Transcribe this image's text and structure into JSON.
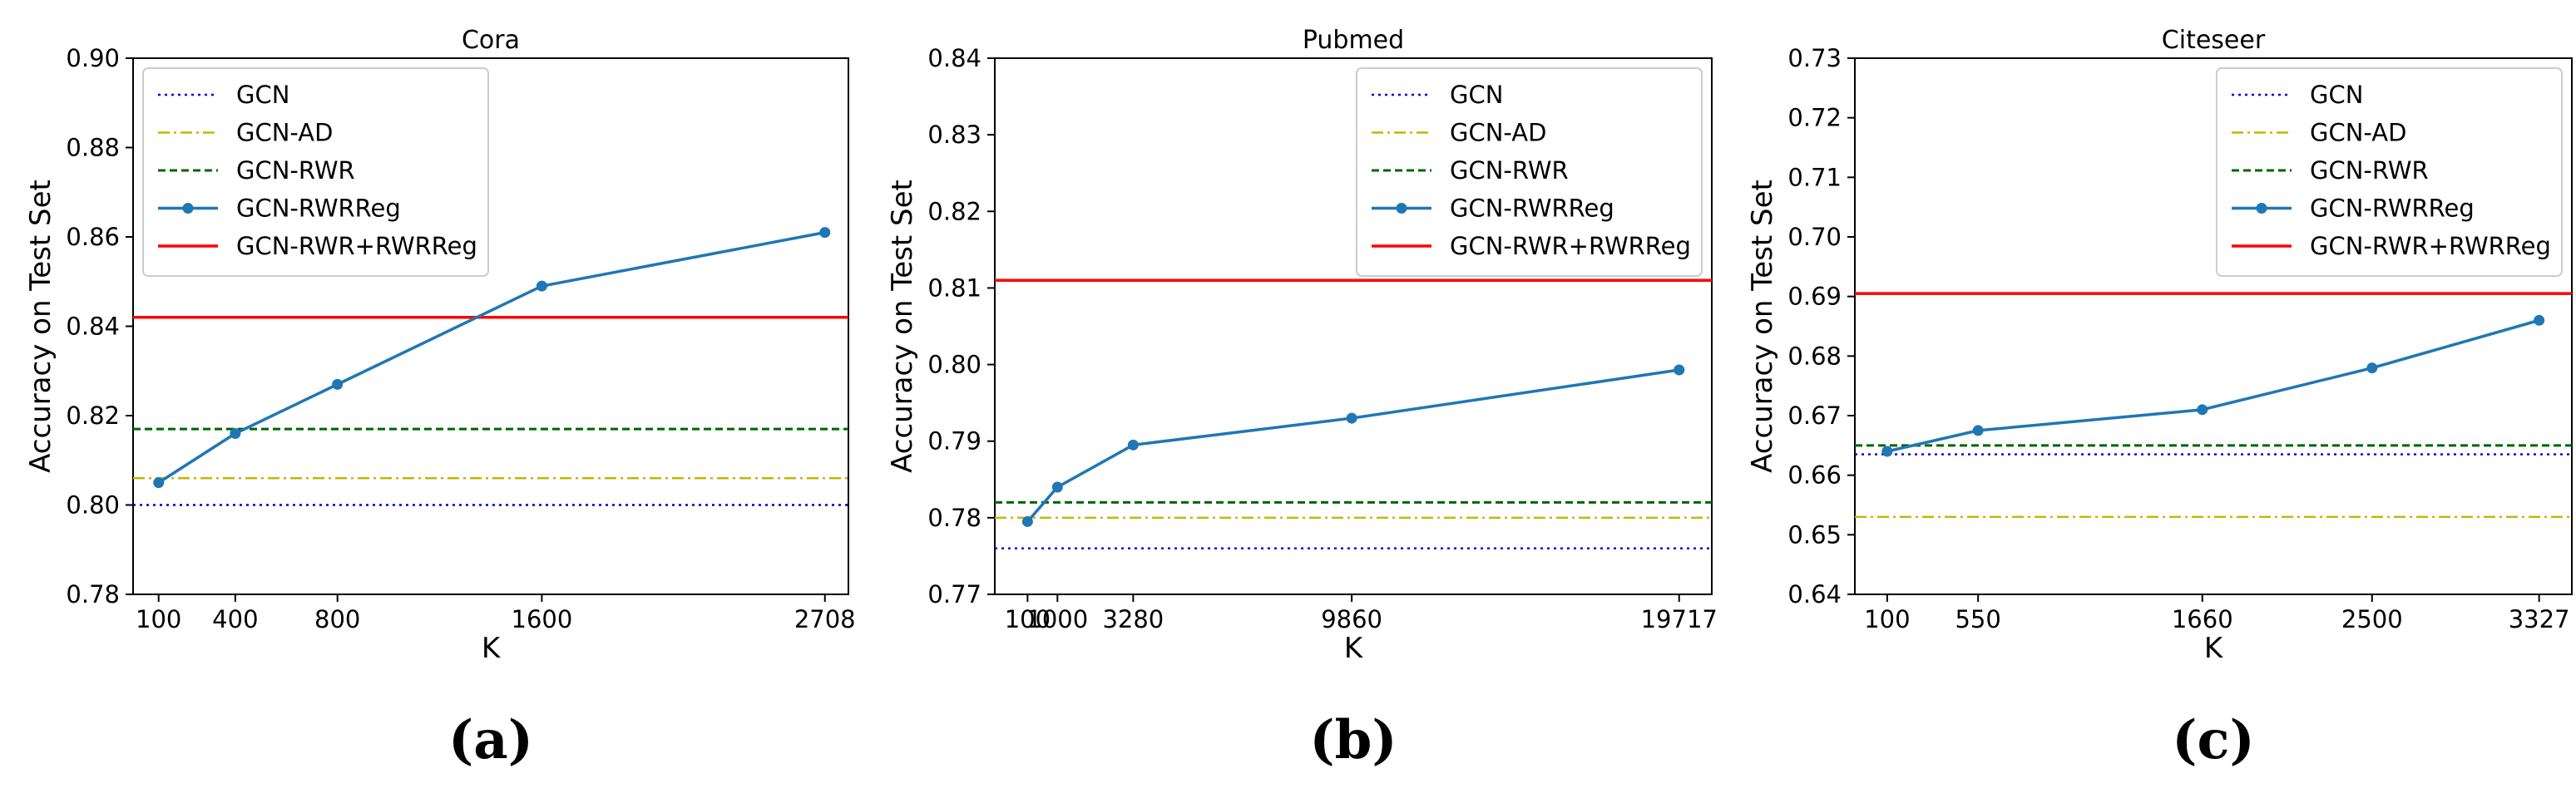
{
  "chart_data": [
    {
      "type": "line",
      "title": "Cora",
      "caption": "(a)",
      "xlabel": "K",
      "ylabel": "Accuracy on Test Set",
      "xlim": [
        0,
        2800
      ],
      "ylim": [
        0.78,
        0.9
      ],
      "xticks": [
        100,
        400,
        800,
        1600,
        2708
      ],
      "xtick_labels": [
        "100",
        "400",
        "800",
        "1600",
        "2708"
      ],
      "yticks": [
        0.78,
        0.8,
        0.82,
        0.84,
        0.86,
        0.88,
        0.9
      ],
      "ytick_labels": [
        "0.78",
        "0.80",
        "0.82",
        "0.84",
        "0.86",
        "0.88",
        "0.90"
      ],
      "legend_position": "top-left",
      "baselines": [
        {
          "name": "GCN",
          "value": 0.8
        },
        {
          "name": "GCN-AD",
          "value": 0.806
        },
        {
          "name": "GCN-RWR",
          "value": 0.817
        },
        {
          "name": "GCN-RWR+RWRReg",
          "value": 0.842
        }
      ],
      "series": [
        {
          "name": "GCN-RWRReg",
          "x": [
            100,
            400,
            800,
            1600,
            2708
          ],
          "values": [
            0.805,
            0.816,
            0.827,
            0.849,
            0.861
          ]
        }
      ]
    },
    {
      "type": "line",
      "title": "Pubmed",
      "caption": "(b)",
      "xlabel": "K",
      "ylabel": "Accuracy on Test Set",
      "xlim": [
        -886,
        20700
      ],
      "ylim": [
        0.77,
        0.84
      ],
      "xticks": [
        100,
        1000,
        3280,
        9860,
        19717
      ],
      "xtick_labels": [
        "100",
        "1000",
        "3280",
        "9860",
        "19717"
      ],
      "yticks": [
        0.77,
        0.78,
        0.79,
        0.8,
        0.81,
        0.82,
        0.83,
        0.84
      ],
      "ytick_labels": [
        "0.77",
        "0.78",
        "0.79",
        "0.80",
        "0.81",
        "0.82",
        "0.83",
        "0.84"
      ],
      "legend_position": "top-right",
      "baselines": [
        {
          "name": "GCN",
          "value": 0.776
        },
        {
          "name": "GCN-AD",
          "value": 0.78
        },
        {
          "name": "GCN-RWR",
          "value": 0.782
        },
        {
          "name": "GCN-RWR+RWRReg",
          "value": 0.811
        }
      ],
      "series": [
        {
          "name": "GCN-RWRReg",
          "x": [
            100,
            1000,
            3280,
            9860,
            19717
          ],
          "values": [
            0.7795,
            0.784,
            0.7895,
            0.793,
            0.7993
          ]
        }
      ]
    },
    {
      "type": "line",
      "title": "Citeseer",
      "caption": "(c)",
      "xlabel": "K",
      "ylabel": "Accuracy on Test Set",
      "xlim": [
        -60,
        3489
      ],
      "ylim": [
        0.64,
        0.73
      ],
      "xticks": [
        100,
        550,
        1660,
        2500,
        3327
      ],
      "xtick_labels": [
        "100",
        "550",
        "1660",
        "2500",
        "3327"
      ],
      "yticks": [
        0.64,
        0.65,
        0.66,
        0.67,
        0.68,
        0.69,
        0.7,
        0.71,
        0.72,
        0.73
      ],
      "ytick_labels": [
        "0.64",
        "0.65",
        "0.66",
        "0.67",
        "0.68",
        "0.69",
        "0.70",
        "0.71",
        "0.72",
        "0.73"
      ],
      "legend_position": "top-right",
      "baselines": [
        {
          "name": "GCN",
          "value": 0.6635
        },
        {
          "name": "GCN-AD",
          "value": 0.653
        },
        {
          "name": "GCN-RWR",
          "value": 0.665
        },
        {
          "name": "GCN-RWR+RWRReg",
          "value": 0.6905
        }
      ],
      "series": [
        {
          "name": "GCN-RWRReg",
          "x": [
            100,
            550,
            1660,
            2500,
            3327
          ],
          "values": [
            0.664,
            0.6675,
            0.671,
            0.678,
            0.686
          ]
        }
      ]
    }
  ],
  "legend_items": [
    {
      "name": "GCN",
      "style": "dotted",
      "color": "#0000cc"
    },
    {
      "name": "GCN-AD",
      "style": "dashdot",
      "color": "#c8b400"
    },
    {
      "name": "GCN-RWR",
      "style": "dashed",
      "color": "#006400"
    },
    {
      "name": "GCN-RWRReg",
      "style": "solid-marker",
      "color": "#1f77b4"
    },
    {
      "name": "GCN-RWR+RWRReg",
      "style": "solid",
      "color": "#ff0000"
    }
  ],
  "styles": {
    "GCN": {
      "color": "#0000cc",
      "dash": "3,5",
      "width": 2.4
    },
    "GCN-AD": {
      "color": "#c8b400",
      "dash": "14,5,3,5",
      "width": 2.4
    },
    "GCN-RWR": {
      "color": "#006400",
      "dash": "9,5",
      "width": 3
    },
    "GCN-RWRReg": {
      "color": "#1f77b4",
      "dash": "",
      "width": 3.5
    },
    "GCN-RWR+RWRReg": {
      "color": "#ff0000",
      "dash": "",
      "width": 3.5
    }
  }
}
